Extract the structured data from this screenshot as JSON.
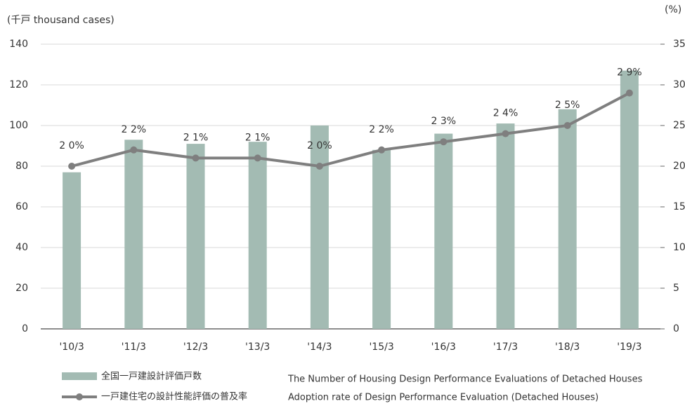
{
  "chart_data": {
    "type": "bar_line",
    "y_axis_label": "(千戸 thousand cases)",
    "y2_axis_label": "(%)",
    "categories": [
      "'10/3",
      "'11/3",
      "'12/3",
      "'13/3",
      "'14/3",
      "'15/3",
      "'16/3",
      "'17/3",
      "'18/3",
      "'19/3"
    ],
    "series": [
      {
        "name": "全国一戸建設計評価戸数",
        "type": "bar",
        "color": "#a3bbb3",
        "values": [
          77,
          93,
          91,
          92,
          100,
          88,
          96,
          101,
          108,
          127
        ]
      },
      {
        "name": "一戸建住宅の設計性能評価の普及率",
        "type": "line",
        "axis": "y2",
        "color": "#7f7f7f",
        "values": [
          20,
          22,
          21,
          21,
          20,
          22,
          23,
          24,
          25,
          29
        ],
        "value_labels": [
          "2 0%",
          "2 2%",
          "2 1%",
          "2 1%",
          "2 0%",
          "2 2%",
          "2 3%",
          "2 4%",
          "2 5%",
          "2 9%"
        ]
      }
    ],
    "annotations": [
      "The Number of Housing Design Performance Evaluations of Detached Houses",
      "Adoption rate of Design Performance Evaluation (Detached Houses)"
    ],
    "ylim": [
      0,
      140
    ],
    "yticks": [
      0,
      20,
      40,
      60,
      80,
      100,
      120,
      140
    ],
    "y2lim": [
      0,
      35
    ],
    "y2ticks": [
      0,
      5,
      10,
      15,
      20,
      25,
      30,
      35
    ],
    "grid": true
  }
}
